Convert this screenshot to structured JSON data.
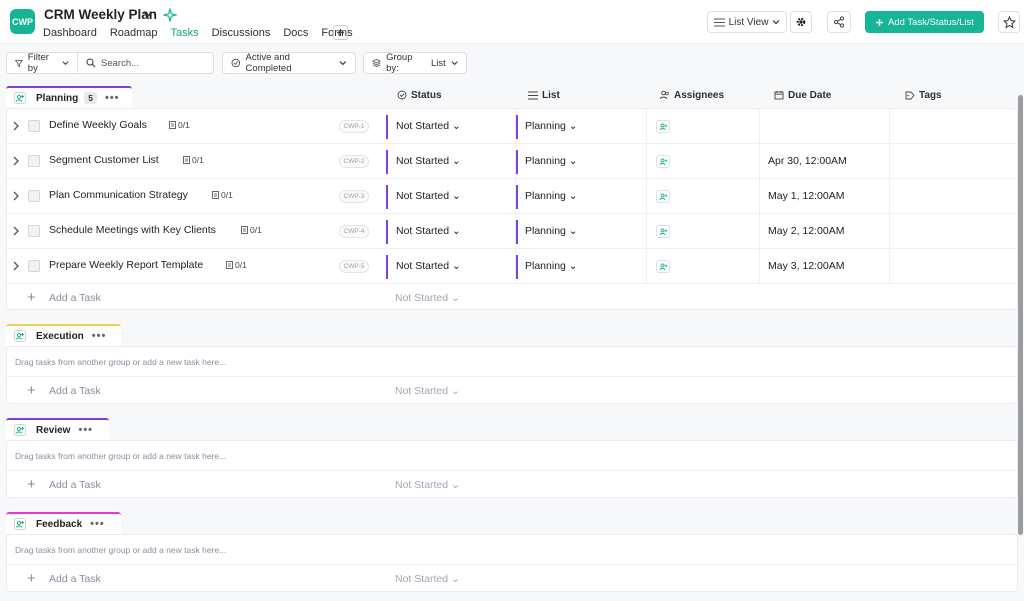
{
  "app": {
    "logo_text": "CWP",
    "project_title": "CRM Weekly Plan",
    "accent": "#17b596"
  },
  "nav": [
    "Dashboard",
    "Roadmap",
    "Tasks",
    "Discussions",
    "Docs",
    "Forms"
  ],
  "nav_active": "Tasks",
  "toolbar": {
    "view_label": "List View",
    "add_label": "Add Task/Status/List"
  },
  "filters": {
    "filter_label": "Filter by",
    "search_placeholder": "Search...",
    "status_filter": "Active and Completed",
    "group_by_label": "Group by:",
    "group_by_value": "List"
  },
  "columns": {
    "status": "Status",
    "list": "List",
    "assignees": "Assignees",
    "due": "Due Date",
    "tags": "Tags"
  },
  "groups": [
    {
      "name": "Planning",
      "count": "5",
      "color": "#7b3fe4",
      "tasks": [
        {
          "name": "Define Weekly Goals",
          "subtasks": "0/1",
          "id": "CWP-1",
          "status": "Not Started",
          "list": "Planning",
          "due": ""
        },
        {
          "name": "Segment Customer List",
          "subtasks": "0/1",
          "id": "CWP-2",
          "status": "Not Started",
          "list": "Planning",
          "due": "Apr 30, 12:00AM"
        },
        {
          "name": "Plan Communication Strategy",
          "subtasks": "0/1",
          "id": "CWP-3",
          "status": "Not Started",
          "list": "Planning",
          "due": "May 1, 12:00AM"
        },
        {
          "name": "Schedule Meetings with Key Clients",
          "subtasks": "0/1",
          "id": "CWP-4",
          "status": "Not Started",
          "list": "Planning",
          "due": "May 2, 12:00AM"
        },
        {
          "name": "Prepare Weekly Report Template",
          "subtasks": "0/1",
          "id": "CWP-5",
          "status": "Not Started",
          "list": "Planning",
          "due": "May 3, 12:00AM"
        }
      ]
    },
    {
      "name": "Execution",
      "color": "#f5d24a"
    },
    {
      "name": "Review",
      "color": "#7b3fe4"
    },
    {
      "name": "Feedback",
      "color": "#e935d6"
    }
  ],
  "add_task_label": "Add a Task",
  "default_status": "Not Started",
  "drag_message": "Drag tasks from another group or add a new task here..."
}
